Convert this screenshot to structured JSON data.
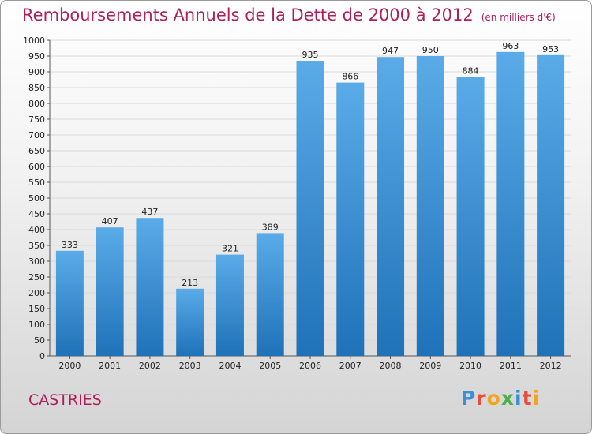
{
  "header": {
    "title": "Remboursements Annuels de la Dette de 2000 à 2012",
    "unit": "(en milliers d'€)"
  },
  "footer": {
    "town": "CASTRIES",
    "logo": [
      "P",
      "r",
      "o",
      "x",
      "i",
      "t",
      "i"
    ]
  },
  "colors": {
    "bar_top": "#5aabe8",
    "bar_bottom": "#1f72b8",
    "title": "#b01e5a"
  },
  "chart_data": {
    "type": "bar",
    "title": "Remboursements Annuels de la Dette de 2000 à 2012",
    "xlabel": "",
    "ylabel": "",
    "ylim": [
      0,
      1000
    ],
    "yticks": [
      0,
      50,
      100,
      150,
      200,
      250,
      300,
      350,
      400,
      450,
      500,
      550,
      600,
      650,
      700,
      750,
      800,
      850,
      900,
      950,
      1000
    ],
    "grid": true,
    "categories": [
      "2000",
      "2001",
      "2002",
      "2003",
      "2004",
      "2005",
      "2006",
      "2007",
      "2008",
      "2009",
      "2010",
      "2011",
      "2012"
    ],
    "values": [
      333,
      407,
      437,
      213,
      321,
      389,
      935,
      866,
      947,
      950,
      884,
      963,
      953
    ]
  }
}
